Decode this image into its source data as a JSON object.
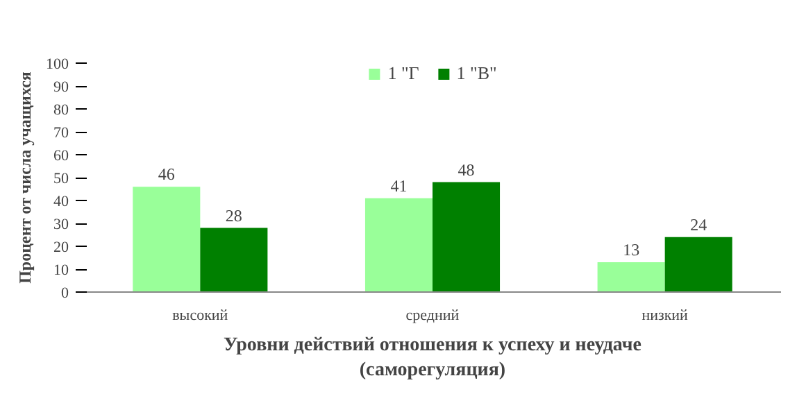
{
  "chart_data": {
    "type": "bar",
    "categories": [
      "высокий",
      "средний",
      "низкий"
    ],
    "series": [
      {
        "name": "1 \"Г",
        "color": "#99ff99",
        "values": [
          46,
          41,
          13
        ]
      },
      {
        "name": "1 \"В\"",
        "color": "#008000",
        "values": [
          28,
          48,
          24
        ]
      }
    ],
    "ylabel": "Процент от числа учащихся",
    "xlabel": "Уровни действий отношения к успеху и неудаче\n(саморегуляция)",
    "ylim": [
      0,
      100
    ],
    "yticks": [
      0,
      10,
      20,
      30,
      40,
      50,
      60,
      70,
      80,
      90,
      100
    ],
    "data_labels": true,
    "legend": "top",
    "grid": false
  }
}
